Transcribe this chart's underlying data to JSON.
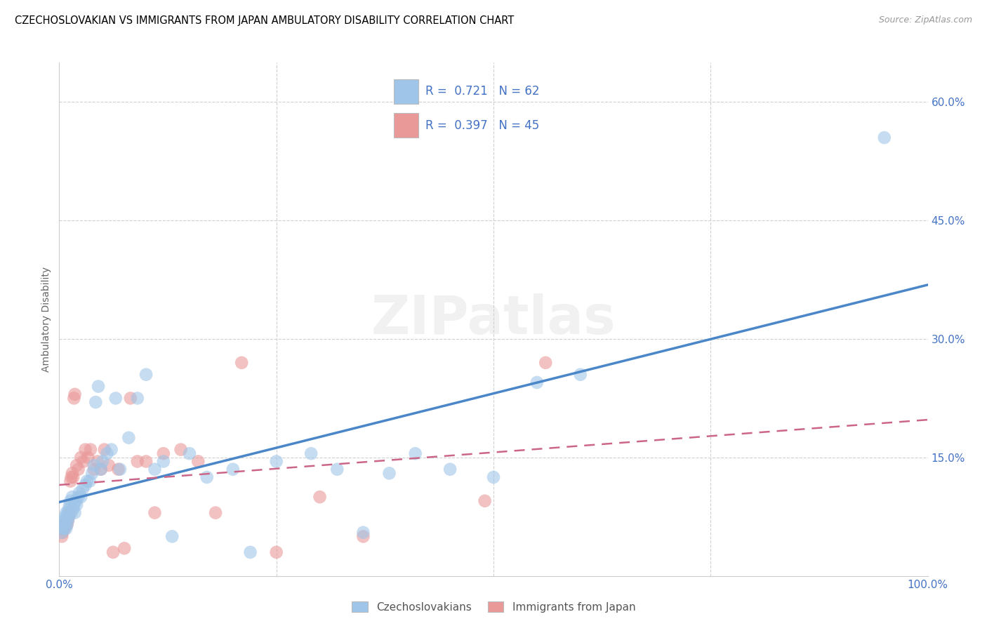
{
  "title": "CZECHOSLOVAKIAN VS IMMIGRANTS FROM JAPAN AMBULATORY DISABILITY CORRELATION CHART",
  "source": "Source: ZipAtlas.com",
  "ylabel": "Ambulatory Disability",
  "xlim": [
    0.0,
    1.0
  ],
  "ylim": [
    0.0,
    0.65
  ],
  "yticks": [
    0.0,
    0.15,
    0.3,
    0.45,
    0.6
  ],
  "ytick_labels": [
    "",
    "15.0%",
    "30.0%",
    "45.0%",
    "60.0%"
  ],
  "r_czech": 0.721,
  "n_czech": 62,
  "r_japan": 0.397,
  "n_japan": 45,
  "blue_color": "#9fc5e8",
  "pink_color": "#ea9999",
  "blue_line_color": "#4a86c8",
  "pink_line_color": "#cc6688",
  "watermark": "ZIPatlas",
  "legend_label_czech": "Czechoslovakians",
  "legend_label_japan": "Immigrants from Japan",
  "czech_x": [
    0.003,
    0.004,
    0.005,
    0.005,
    0.006,
    0.007,
    0.007,
    0.008,
    0.008,
    0.009,
    0.009,
    0.01,
    0.01,
    0.011,
    0.011,
    0.012,
    0.013,
    0.014,
    0.015,
    0.016,
    0.017,
    0.018,
    0.019,
    0.02,
    0.022,
    0.023,
    0.025,
    0.027,
    0.03,
    0.032,
    0.035,
    0.038,
    0.04,
    0.042,
    0.045,
    0.048,
    0.05,
    0.055,
    0.06,
    0.065,
    0.07,
    0.08,
    0.09,
    0.1,
    0.11,
    0.12,
    0.13,
    0.15,
    0.17,
    0.2,
    0.22,
    0.25,
    0.29,
    0.32,
    0.35,
    0.38,
    0.41,
    0.45,
    0.5,
    0.55,
    0.6,
    0.95
  ],
  "czech_y": [
    0.055,
    0.06,
    0.065,
    0.07,
    0.06,
    0.07,
    0.075,
    0.06,
    0.08,
    0.065,
    0.075,
    0.07,
    0.08,
    0.075,
    0.085,
    0.09,
    0.095,
    0.08,
    0.1,
    0.085,
    0.09,
    0.08,
    0.095,
    0.09,
    0.1,
    0.105,
    0.1,
    0.11,
    0.115,
    0.12,
    0.12,
    0.13,
    0.14,
    0.22,
    0.24,
    0.135,
    0.145,
    0.155,
    0.16,
    0.225,
    0.135,
    0.175,
    0.225,
    0.255,
    0.135,
    0.145,
    0.05,
    0.155,
    0.125,
    0.135,
    0.03,
    0.145,
    0.155,
    0.135,
    0.055,
    0.13,
    0.155,
    0.135,
    0.125,
    0.245,
    0.255,
    0.555
  ],
  "japan_x": [
    0.003,
    0.004,
    0.005,
    0.006,
    0.007,
    0.008,
    0.009,
    0.01,
    0.011,
    0.012,
    0.013,
    0.014,
    0.015,
    0.016,
    0.017,
    0.018,
    0.02,
    0.022,
    0.025,
    0.028,
    0.03,
    0.033,
    0.036,
    0.04,
    0.044,
    0.048,
    0.052,
    0.057,
    0.062,
    0.068,
    0.075,
    0.082,
    0.09,
    0.1,
    0.11,
    0.12,
    0.14,
    0.16,
    0.18,
    0.21,
    0.25,
    0.3,
    0.35,
    0.49,
    0.56
  ],
  "japan_y": [
    0.05,
    0.055,
    0.06,
    0.06,
    0.065,
    0.07,
    0.065,
    0.07,
    0.075,
    0.08,
    0.12,
    0.125,
    0.13,
    0.125,
    0.225,
    0.23,
    0.14,
    0.135,
    0.15,
    0.145,
    0.16,
    0.15,
    0.16,
    0.135,
    0.145,
    0.135,
    0.16,
    0.14,
    0.03,
    0.135,
    0.035,
    0.225,
    0.145,
    0.145,
    0.08,
    0.155,
    0.16,
    0.145,
    0.08,
    0.27,
    0.03,
    0.1,
    0.05,
    0.095,
    0.27
  ]
}
